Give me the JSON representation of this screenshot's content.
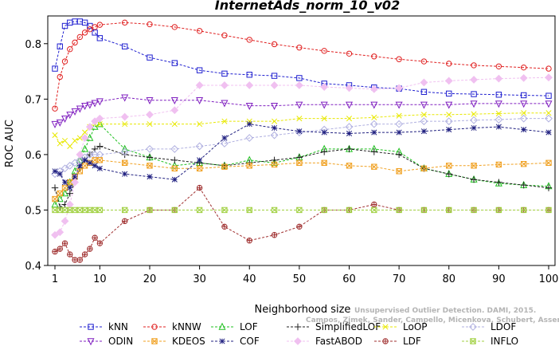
{
  "chart_data": {
    "type": "line",
    "title": "InternetAds_norm_10_v02",
    "xlabel": "Neighborhood size",
    "ylabel": "ROC AUC",
    "xlim": [
      1,
      100
    ],
    "ylim": [
      0.4,
      0.85
    ],
    "xticks": [
      1,
      10,
      20,
      30,
      40,
      50,
      60,
      70,
      80,
      90,
      100
    ],
    "yticks": [
      0.4,
      0.5,
      0.6,
      0.7,
      0.8
    ],
    "grid": false,
    "legend_position": "bottom",
    "x": [
      1,
      2,
      3,
      4,
      5,
      6,
      7,
      8,
      9,
      10,
      15,
      20,
      25,
      30,
      35,
      40,
      45,
      50,
      55,
      60,
      65,
      70,
      75,
      80,
      85,
      90,
      95,
      100
    ],
    "series": [
      {
        "name": "kNN",
        "color": "#2020d0",
        "marker": "square",
        "values": [
          0.755,
          0.795,
          0.832,
          0.838,
          0.84,
          0.84,
          0.838,
          0.832,
          0.82,
          0.81,
          0.795,
          0.775,
          0.765,
          0.752,
          0.746,
          0.744,
          0.742,
          0.738,
          0.728,
          0.725,
          0.721,
          0.719,
          0.713,
          0.71,
          0.709,
          0.708,
          0.707,
          0.706
        ]
      },
      {
        "name": "kNNW",
        "color": "#e02020",
        "marker": "circle",
        "values": [
          0.683,
          0.74,
          0.768,
          0.79,
          0.802,
          0.812,
          0.82,
          0.826,
          0.83,
          0.834,
          0.838,
          0.835,
          0.83,
          0.823,
          0.815,
          0.807,
          0.799,
          0.793,
          0.787,
          0.782,
          0.777,
          0.772,
          0.768,
          0.764,
          0.761,
          0.759,
          0.757,
          0.755
        ]
      },
      {
        "name": "LOF",
        "color": "#20c020",
        "marker": "triangle",
        "values": [
          0.51,
          0.52,
          0.53,
          0.55,
          0.57,
          0.59,
          0.61,
          0.63,
          0.65,
          0.655,
          0.61,
          0.595,
          0.58,
          0.585,
          0.58,
          0.59,
          0.585,
          0.595,
          0.61,
          0.61,
          0.61,
          0.605,
          0.575,
          0.565,
          0.555,
          0.548,
          0.545,
          0.543
        ]
      },
      {
        "name": "SimplifiedLOF",
        "color": "#202020",
        "marker": "plus",
        "values": [
          0.54,
          0.505,
          0.51,
          0.53,
          0.55,
          0.575,
          0.59,
          0.6,
          0.61,
          0.615,
          0.6,
          0.595,
          0.59,
          0.585,
          0.58,
          0.585,
          0.59,
          0.595,
          0.605,
          0.61,
          0.605,
          0.6,
          0.575,
          0.565,
          0.555,
          0.55,
          0.545,
          0.54
        ]
      },
      {
        "name": "LoOP",
        "color": "#e8e800",
        "marker": "x",
        "values": [
          0.635,
          0.62,
          0.625,
          0.615,
          0.625,
          0.63,
          0.64,
          0.65,
          0.655,
          0.655,
          0.655,
          0.655,
          0.655,
          0.655,
          0.66,
          0.66,
          0.66,
          0.665,
          0.665,
          0.665,
          0.667,
          0.67,
          0.672,
          0.672,
          0.673,
          0.674,
          0.675,
          0.675
        ]
      },
      {
        "name": "LDOF",
        "color": "#b0b0e0",
        "marker": "diamond",
        "values": [
          0.565,
          0.57,
          0.575,
          0.58,
          0.585,
          0.59,
          0.595,
          0.6,
          0.6,
          0.6,
          0.605,
          0.61,
          0.61,
          0.615,
          0.62,
          0.63,
          0.635,
          0.64,
          0.645,
          0.65,
          0.655,
          0.655,
          0.66,
          0.66,
          0.662,
          0.663,
          0.665,
          0.665
        ]
      },
      {
        "name": "ODIN",
        "color": "#8020c0",
        "marker": "triangle-down",
        "values": [
          0.655,
          0.658,
          0.665,
          0.672,
          0.678,
          0.683,
          0.688,
          0.69,
          0.693,
          0.696,
          0.703,
          0.698,
          0.698,
          0.698,
          0.693,
          0.688,
          0.688,
          0.69,
          0.69,
          0.69,
          0.69,
          0.69,
          0.69,
          0.69,
          0.692,
          0.692,
          0.692,
          0.692
        ]
      },
      {
        "name": "KDEOS",
        "color": "#f0a020",
        "marker": "square-x",
        "values": [
          0.52,
          0.53,
          0.54,
          0.55,
          0.56,
          0.57,
          0.58,
          0.585,
          0.59,
          0.59,
          0.585,
          0.58,
          0.575,
          0.575,
          0.578,
          0.58,
          0.582,
          0.585,
          0.585,
          0.58,
          0.578,
          0.57,
          0.575,
          0.58,
          0.58,
          0.582,
          0.583,
          0.585
        ]
      },
      {
        "name": "COF",
        "color": "#202080",
        "marker": "asterisk",
        "values": [
          0.57,
          0.565,
          0.55,
          0.54,
          0.56,
          0.58,
          0.59,
          0.585,
          0.58,
          0.575,
          0.565,
          0.56,
          0.555,
          0.59,
          0.63,
          0.655,
          0.648,
          0.642,
          0.64,
          0.638,
          0.64,
          0.64,
          0.642,
          0.645,
          0.648,
          0.65,
          0.645,
          0.64
        ]
      },
      {
        "name": "FastABOD",
        "color": "#f0c0f0",
        "marker": "diamond-filled",
        "values": [
          0.455,
          0.46,
          0.48,
          0.51,
          0.55,
          0.6,
          0.63,
          0.65,
          0.66,
          0.665,
          0.668,
          0.672,
          0.68,
          0.725,
          0.725,
          0.725,
          0.725,
          0.725,
          0.722,
          0.72,
          0.718,
          0.72,
          0.73,
          0.733,
          0.735,
          0.737,
          0.738,
          0.739
        ]
      },
      {
        "name": "LDF",
        "color": "#a03030",
        "marker": "circle-plus",
        "values": [
          0.425,
          0.43,
          0.44,
          0.42,
          0.41,
          0.41,
          0.42,
          0.43,
          0.45,
          0.44,
          0.48,
          0.5,
          0.5,
          0.54,
          0.47,
          0.445,
          0.455,
          0.47,
          0.5,
          0.5,
          0.51,
          0.5,
          0.5,
          0.5,
          0.5,
          0.5,
          0.5,
          0.5
        ]
      },
      {
        "name": "INFLO",
        "color": "#a0d040",
        "marker": "square-x",
        "values": [
          0.5,
          0.5,
          0.5,
          0.5,
          0.5,
          0.5,
          0.5,
          0.5,
          0.5,
          0.5,
          0.5,
          0.5,
          0.5,
          0.5,
          0.5,
          0.5,
          0.5,
          0.5,
          0.5,
          0.5,
          0.5,
          0.5,
          0.5,
          0.5,
          0.5,
          0.5,
          0.5,
          0.5
        ]
      }
    ],
    "watermark": "Campos, Zimek, Sander, Campello, Micenkova, Schubert, Assent, Houle",
    "watermark_top": "Unsupervised Outlier Detection. DAMI, 2015."
  }
}
